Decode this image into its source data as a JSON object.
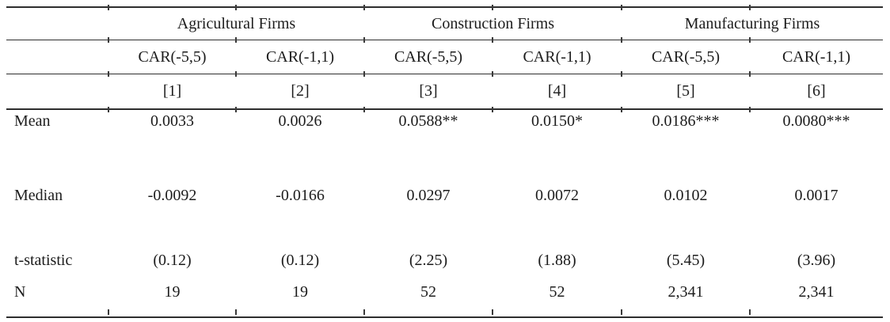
{
  "colors": {
    "background": "#ffffff",
    "text": "#1c1c1c",
    "rule": "#2e2e2e"
  },
  "table": {
    "groups": [
      {
        "label": "Agricultural Firms"
      },
      {
        "label": "Construction Firms"
      },
      {
        "label": "Manufacturing Firms"
      }
    ],
    "columns": [
      "CAR(-5,5)",
      "CAR(-1,1)",
      "CAR(-5,5)",
      "CAR(-1,1)",
      "CAR(-5,5)",
      "CAR(-1,1)"
    ],
    "column_numbers": [
      "[1]",
      "[2]",
      "[3]",
      "[4]",
      "[5]",
      "[6]"
    ],
    "rows": [
      {
        "label": "Mean",
        "values": [
          "0.0033",
          "0.0026",
          "0.0588**",
          "0.0150*",
          "0.0186***",
          "0.0080***"
        ]
      },
      {
        "label": "Median",
        "values": [
          "-0.0092",
          "-0.0166",
          "0.0297",
          "0.0072",
          "0.0102",
          "0.0017"
        ]
      },
      {
        "label": "t-statistic",
        "values": [
          "(0.12)",
          "(0.12)",
          "(2.25)",
          "(1.88)",
          "(5.45)",
          "(3.96)"
        ]
      },
      {
        "label": "N",
        "values": [
          "19",
          "19",
          "52",
          "52",
          "2,341",
          "2,341"
        ]
      }
    ]
  }
}
